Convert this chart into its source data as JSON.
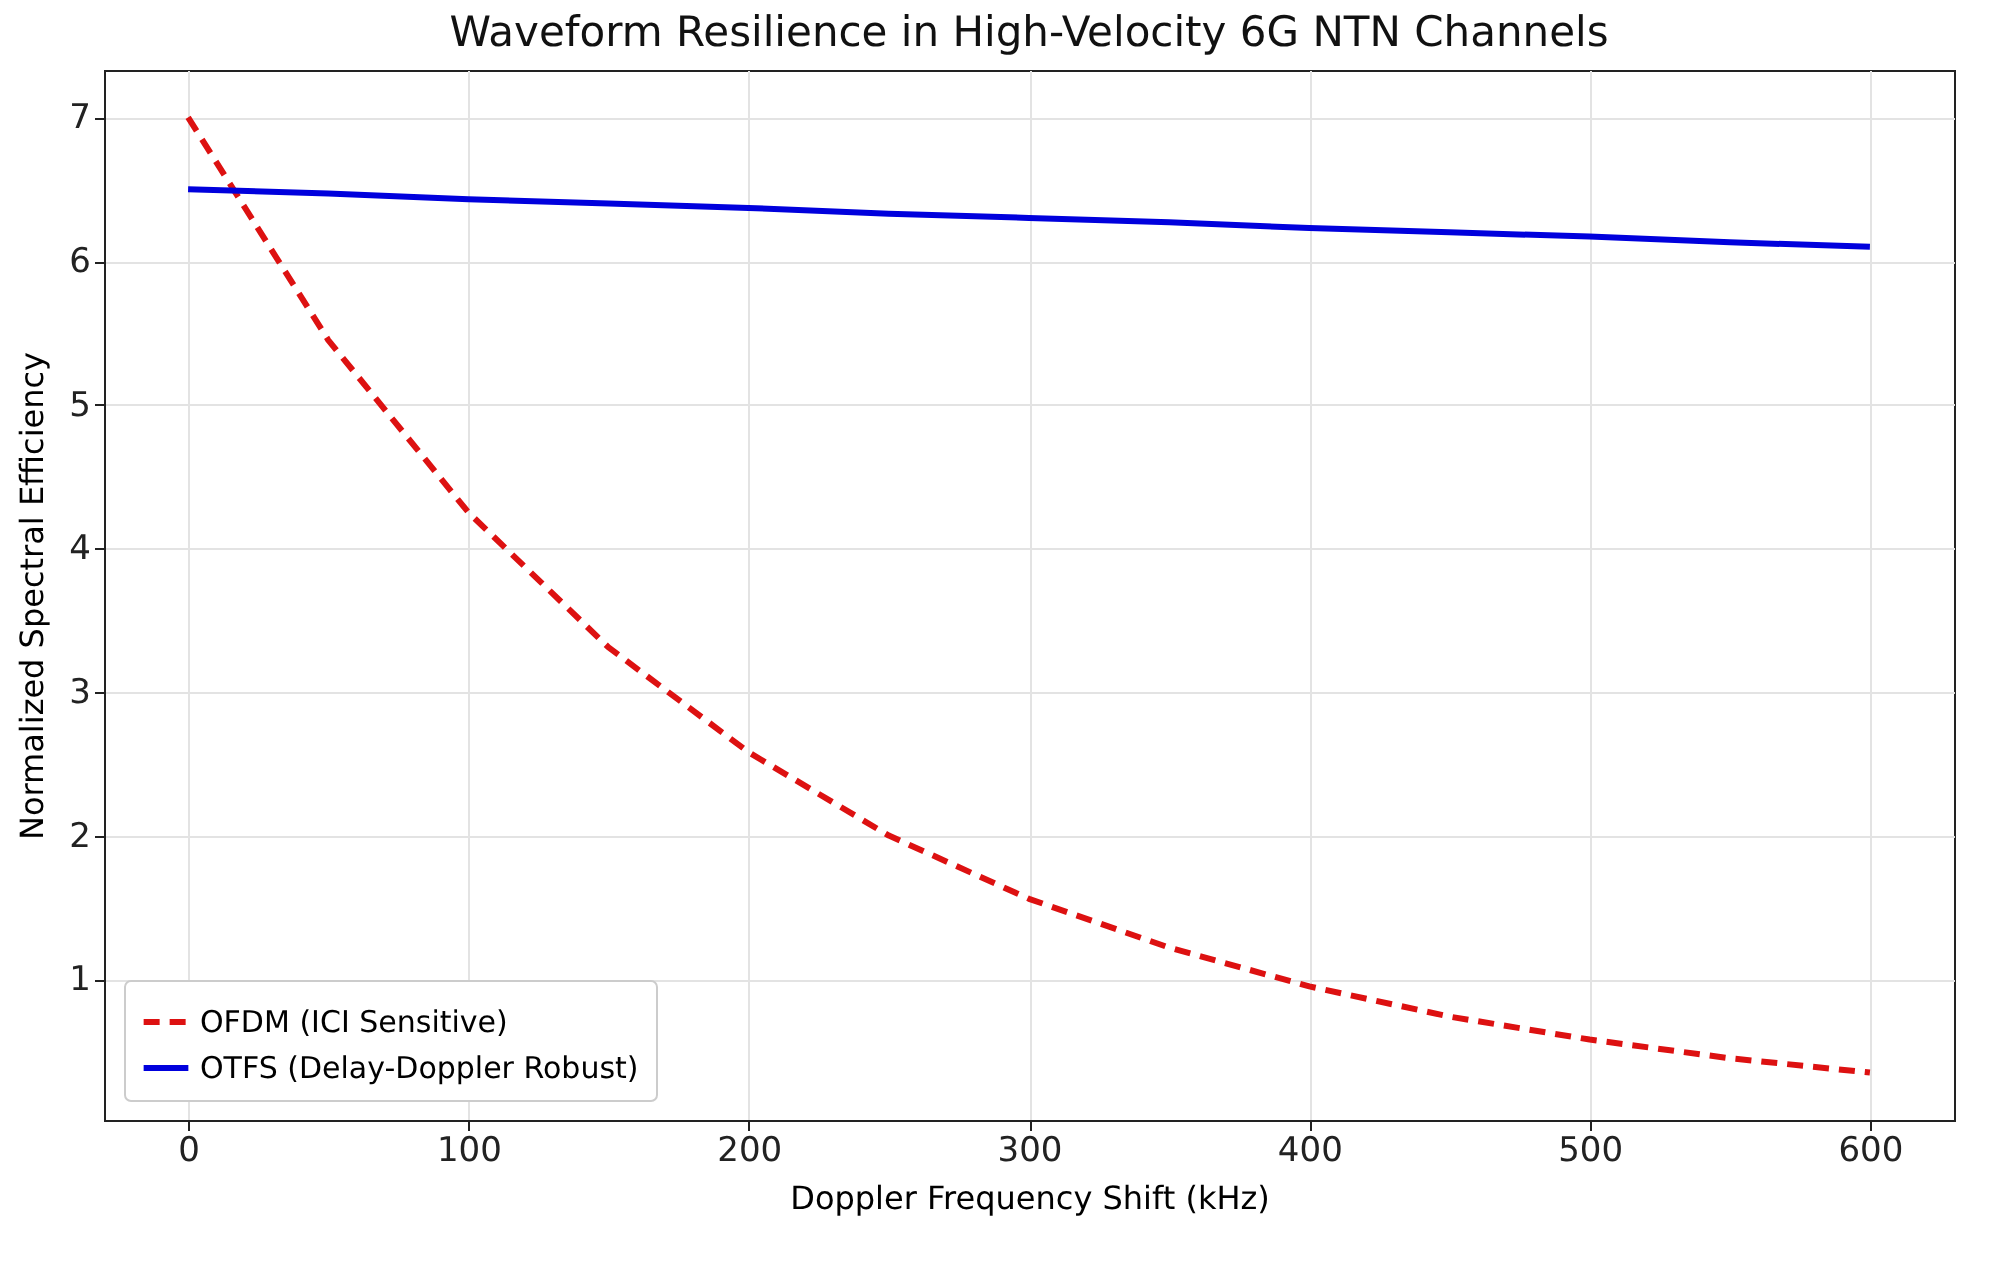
{
  "chart_data": {
    "type": "line",
    "title": "Waveform Resilience in High-Velocity 6G NTN Channels",
    "xlabel": "Doppler Frequency Shift (kHz)",
    "ylabel": "Normalized Spectral Efficiency",
    "x": [
      0,
      50,
      100,
      150,
      200,
      250,
      300,
      350,
      400,
      450,
      500,
      550,
      600
    ],
    "series": [
      {
        "name": "OFDM (ICI Sensitive)",
        "color": "#dd1111",
        "line_style": "dashed",
        "values": [
          7.0,
          5.45,
          4.25,
          3.31,
          2.58,
          2.0,
          1.56,
          1.22,
          0.95,
          0.74,
          0.58,
          0.45,
          0.35
        ]
      },
      {
        "name": "OTFS (Delay-Doppler Robust)",
        "color": "#0000dd",
        "line_style": "solid",
        "values": [
          6.5,
          6.47,
          6.43,
          6.4,
          6.37,
          6.33,
          6.3,
          6.27,
          6.23,
          6.2,
          6.17,
          6.13,
          6.1
        ]
      }
    ],
    "xlim": [
      -30,
      630
    ],
    "ylim": [
      0.02,
      7.33
    ],
    "xticks": [
      0,
      100,
      200,
      300,
      400,
      500,
      600
    ],
    "yticks": [
      1,
      2,
      3,
      4,
      5,
      6,
      7
    ],
    "grid": true,
    "legend": "bottom left",
    "marker": "none"
  }
}
